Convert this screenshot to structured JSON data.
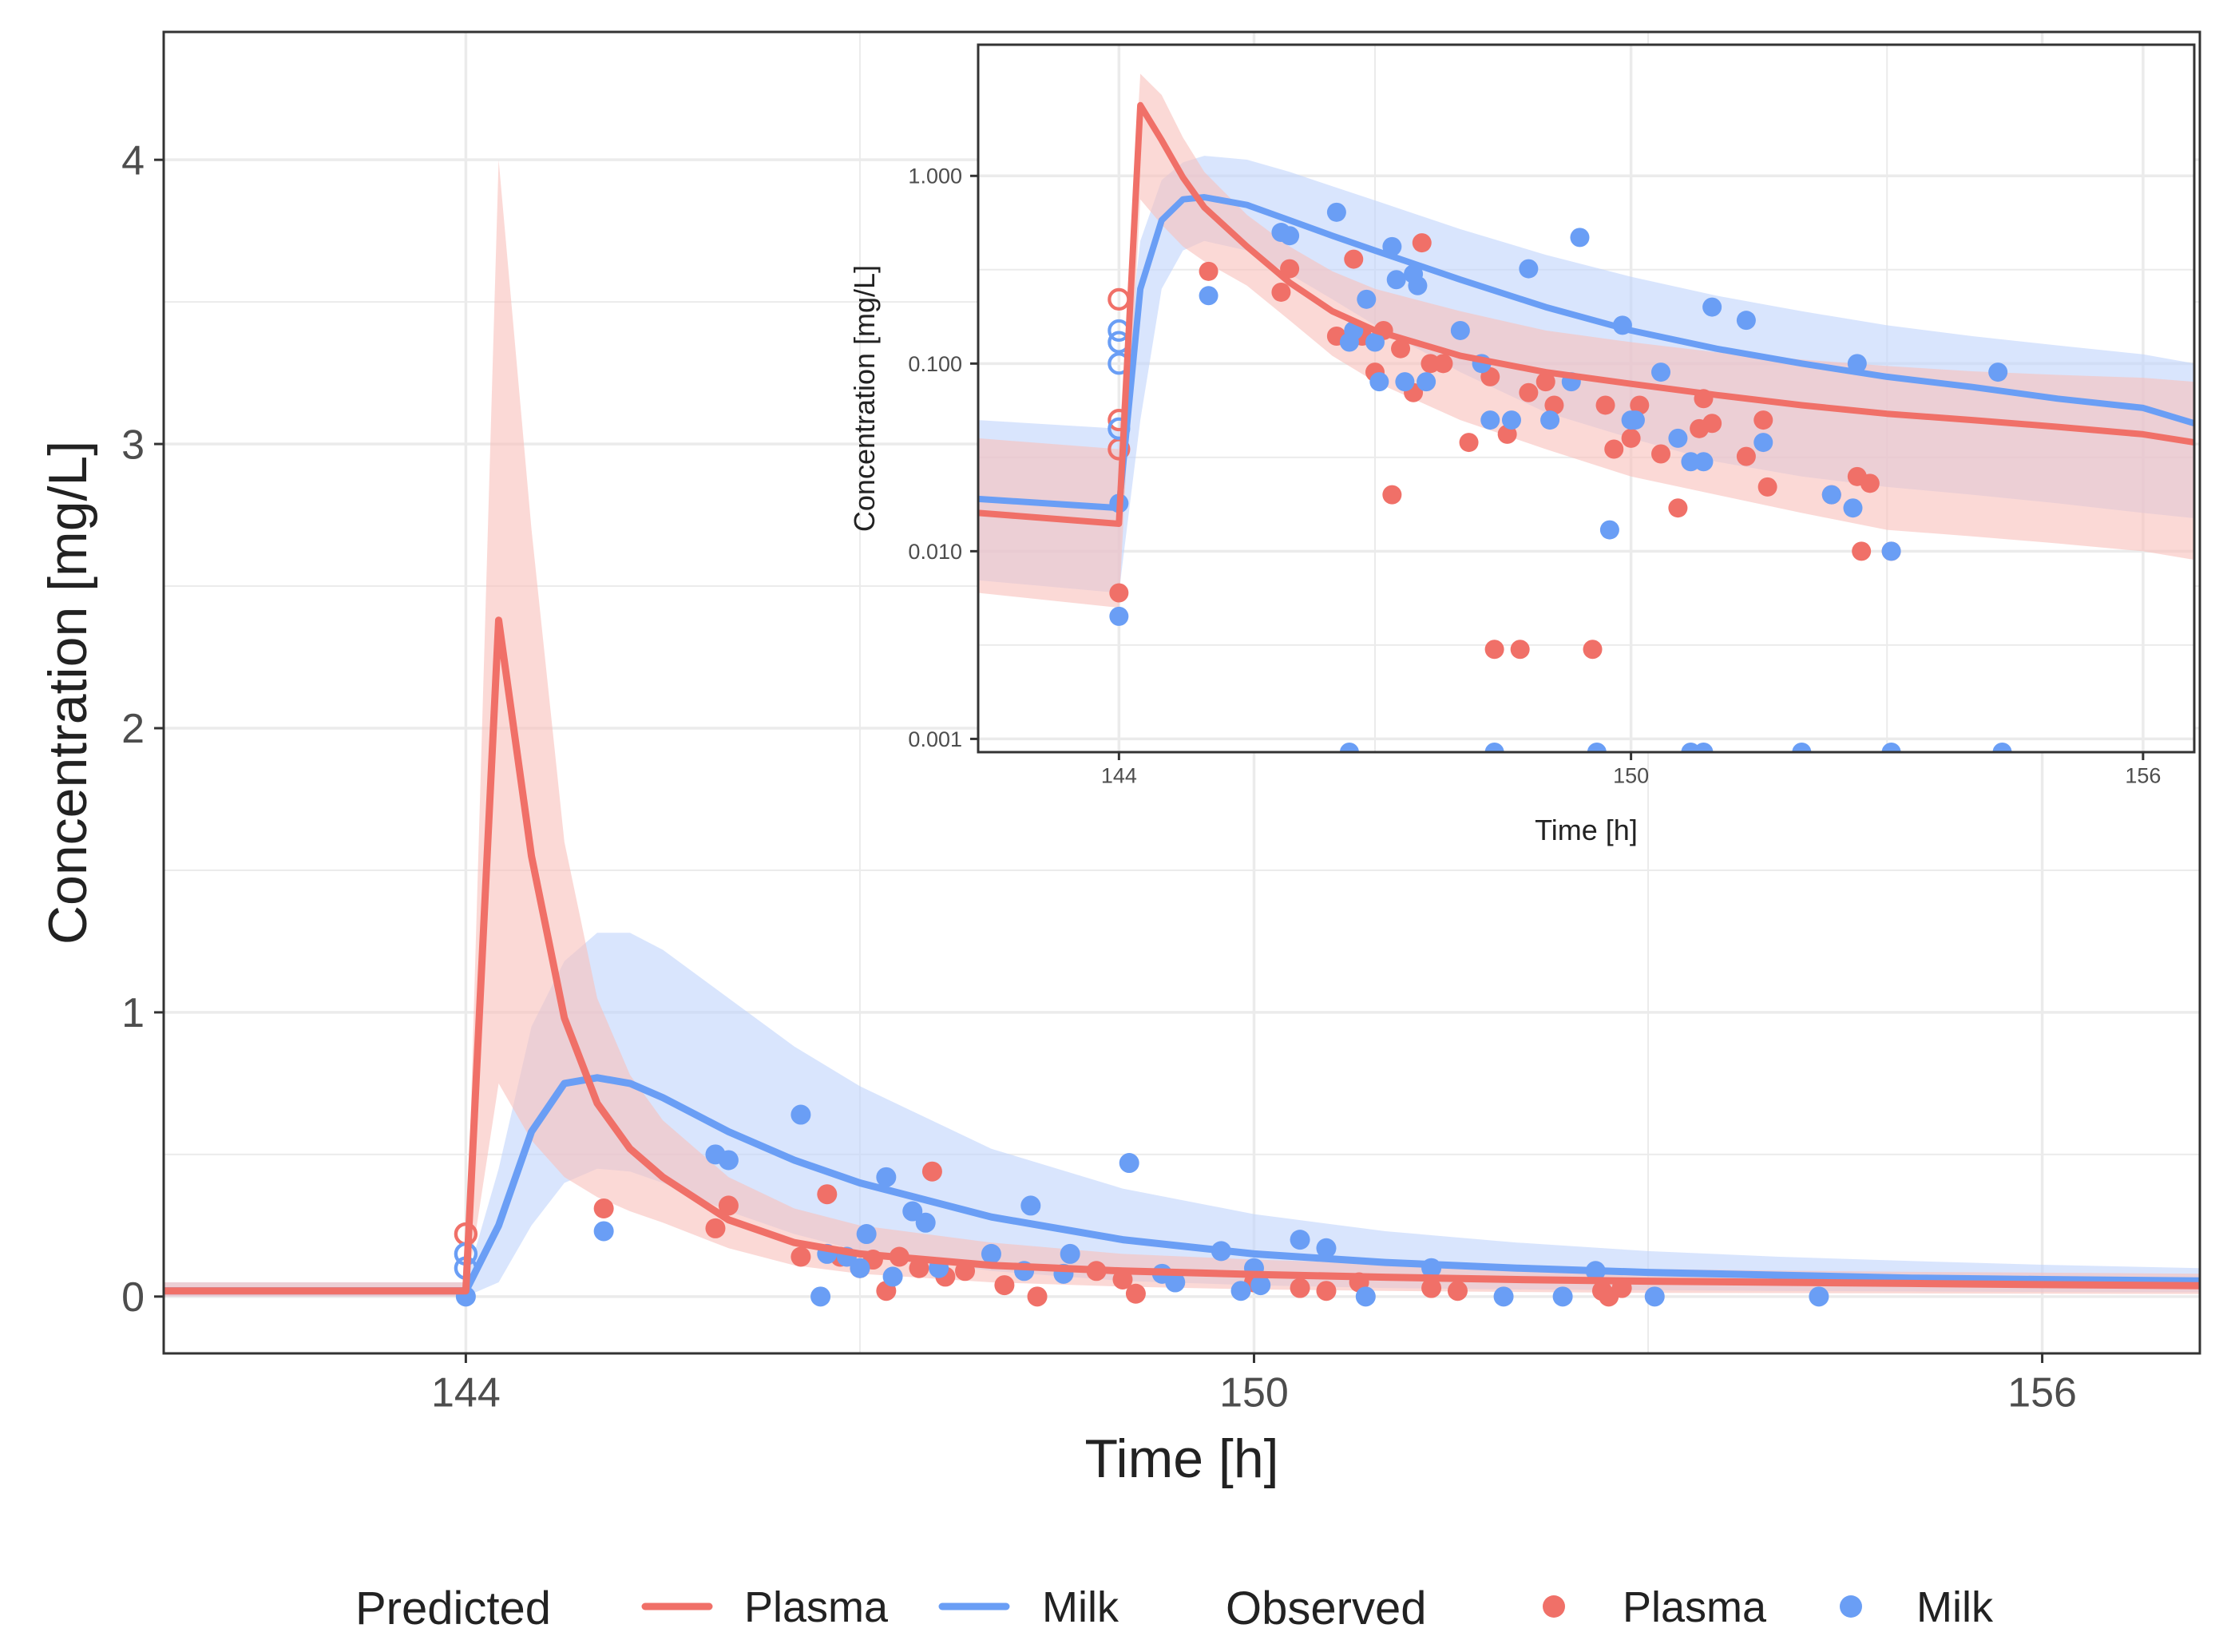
{
  "chart_data": [
    {
      "id": "main",
      "type": "line",
      "title": "",
      "xlabel": "Time [h]",
      "ylabel": "Concentration [mg/L]",
      "xlim": [
        141.7,
        157.2
      ],
      "ylim": [
        -0.2,
        4.45
      ],
      "y_scale": "linear",
      "xticks": [
        144,
        150,
        156
      ],
      "xtick_labels": [
        "144",
        "150",
        "156"
      ],
      "yticks": [
        0,
        1,
        2,
        3,
        4
      ],
      "ytick_labels": [
        "0",
        "1",
        "2",
        "3",
        "4"
      ],
      "grid": true,
      "series": [
        {
          "name": "Plasma",
          "kind": "predicted",
          "color": "#f07068",
          "x": [
            141.7,
            144.0,
            144.25,
            144.5,
            144.75,
            145.0,
            145.25,
            145.5,
            146.0,
            146.5,
            147.0,
            148.0,
            149.0,
            150.0,
            151.0,
            152.0,
            153.0,
            154.0,
            155.0,
            156.0,
            157.2
          ],
          "values": [
            0.02,
            0.02,
            2.38,
            1.55,
            0.98,
            0.68,
            0.52,
            0.42,
            0.27,
            0.19,
            0.15,
            0.11,
            0.09,
            0.078,
            0.068,
            0.06,
            0.054,
            0.05,
            0.046,
            0.042,
            0.038
          ],
          "lower": [
            0.0,
            0.0,
            0.75,
            0.55,
            0.42,
            0.35,
            0.3,
            0.26,
            0.17,
            0.11,
            0.08,
            0.05,
            0.035,
            0.025,
            0.02,
            0.016,
            0.013,
            0.012,
            0.011,
            0.01,
            0.009
          ],
          "upper": [
            0.05,
            0.05,
            4.0,
            2.7,
            1.6,
            1.05,
            0.78,
            0.62,
            0.42,
            0.31,
            0.25,
            0.19,
            0.15,
            0.13,
            0.115,
            0.105,
            0.097,
            0.091,
            0.087,
            0.084,
            0.08
          ]
        },
        {
          "name": "Milk",
          "kind": "predicted",
          "color": "#6a9ef5",
          "x": [
            141.7,
            144.0,
            144.25,
            144.5,
            144.75,
            145.0,
            145.25,
            145.5,
            146.0,
            146.5,
            147.0,
            148.0,
            149.0,
            150.0,
            151.0,
            152.0,
            153.0,
            154.0,
            155.0,
            156.0,
            157.2
          ],
          "values": [
            0.02,
            0.02,
            0.25,
            0.58,
            0.75,
            0.77,
            0.75,
            0.7,
            0.58,
            0.48,
            0.4,
            0.28,
            0.2,
            0.15,
            0.12,
            0.1,
            0.085,
            0.075,
            0.065,
            0.06,
            0.055
          ],
          "lower": [
            0.0,
            0.0,
            0.05,
            0.25,
            0.4,
            0.45,
            0.44,
            0.4,
            0.3,
            0.22,
            0.16,
            0.09,
            0.055,
            0.04,
            0.03,
            0.025,
            0.022,
            0.02,
            0.018,
            0.016,
            0.015
          ],
          "upper": [
            0.05,
            0.05,
            0.45,
            0.95,
            1.18,
            1.28,
            1.28,
            1.22,
            1.05,
            0.88,
            0.74,
            0.52,
            0.38,
            0.29,
            0.23,
            0.19,
            0.16,
            0.14,
            0.125,
            0.112,
            0.1
          ]
        },
        {
          "name": "Plasma",
          "kind": "observed",
          "color": "#f07068",
          "x": [
            144.0,
            145.05,
            145.9,
            146.0,
            146.55,
            146.75,
            146.85,
            147.0,
            147.1,
            147.2,
            147.3,
            147.45,
            147.55,
            147.65,
            147.8,
            148.1,
            148.35,
            148.8,
            149.0,
            149.1,
            150.0,
            150.35,
            150.55,
            150.8,
            151.35,
            151.55,
            152.65,
            152.7,
            152.8
          ],
          "values": [
            0.22,
            0.31,
            0.24,
            0.32,
            0.14,
            0.36,
            0.14,
            0.1,
            0.13,
            0.02,
            0.14,
            0.1,
            0.44,
            0.07,
            0.09,
            0.04,
            0.0,
            0.09,
            0.06,
            0.01,
            0.05,
            0.03,
            0.02,
            0.05,
            0.03,
            0.02,
            0.02,
            0.0,
            0.03
          ],
          "hollow": [
            true,
            false,
            false,
            false,
            false,
            false,
            false,
            false,
            false,
            false,
            false,
            false,
            false,
            false,
            false,
            false,
            false,
            false,
            false,
            false,
            false,
            false,
            false,
            false,
            false,
            false,
            false,
            false,
            false
          ]
        },
        {
          "name": "Milk",
          "kind": "observed",
          "color": "#6a9ef5",
          "x": [
            144.0,
            144.0,
            144.0,
            145.05,
            145.9,
            146.0,
            146.55,
            146.7,
            146.75,
            146.9,
            147.0,
            147.05,
            147.2,
            147.25,
            147.4,
            147.5,
            147.6,
            148.0,
            148.25,
            148.3,
            148.55,
            148.6,
            149.05,
            149.3,
            149.4,
            149.75,
            149.9,
            150.0,
            150.05,
            150.35,
            150.55,
            150.85,
            151.35,
            151.9,
            152.35,
            152.6,
            153.05,
            154.3
          ],
          "values": [
            0.15,
            0.1,
            0.0,
            0.23,
            0.5,
            0.48,
            0.64,
            0.0,
            0.15,
            0.14,
            0.1,
            0.22,
            0.42,
            0.07,
            0.3,
            0.26,
            0.1,
            0.15,
            0.09,
            0.32,
            0.08,
            0.15,
            0.47,
            0.08,
            0.05,
            0.16,
            0.02,
            0.1,
            0.04,
            0.2,
            0.17,
            0.0,
            0.1,
            0.0,
            0.0,
            0.09,
            0.0,
            0.0
          ],
          "hollow": [
            true,
            true,
            false,
            false,
            false,
            false,
            false,
            false,
            false,
            false,
            false,
            false,
            false,
            false,
            false,
            false,
            false,
            false,
            false,
            false,
            false,
            false,
            false,
            false,
            false,
            false,
            false,
            false,
            false,
            false,
            false,
            false,
            false,
            false,
            false,
            false,
            false,
            false
          ]
        }
      ]
    },
    {
      "id": "inset",
      "type": "line",
      "title": "",
      "xlabel": "Time [h]",
      "ylabel": "Concentration [mg/L]",
      "xlim": [
        142.35,
        156.6
      ],
      "ylim": [
        0.00085,
        5.0
      ],
      "y_scale": "log",
      "xticks": [
        144,
        150,
        156
      ],
      "xtick_labels": [
        "144",
        "150",
        "156"
      ],
      "yticks": [
        0.001,
        0.01,
        0.1,
        1.0
      ],
      "ytick_labels": [
        "0.001",
        "0.010",
        "0.100",
        "1.000"
      ],
      "grid": true,
      "series": [
        {
          "name": "Plasma",
          "kind": "predicted",
          "color": "#f07068",
          "x": [
            142.35,
            144.0,
            144.25,
            144.5,
            144.75,
            145.0,
            145.5,
            146.0,
            146.5,
            147.0,
            148.0,
            149.0,
            150.0,
            151.0,
            152.0,
            153.0,
            154.0,
            155.0,
            156.0,
            156.6
          ],
          "values": [
            0.016,
            0.014,
            2.38,
            1.55,
            0.98,
            0.68,
            0.42,
            0.27,
            0.19,
            0.15,
            0.11,
            0.09,
            0.078,
            0.068,
            0.06,
            0.054,
            0.05,
            0.046,
            0.042,
            0.038
          ],
          "lower": [
            0.006,
            0.005,
            0.75,
            0.55,
            0.42,
            0.35,
            0.26,
            0.17,
            0.11,
            0.08,
            0.05,
            0.035,
            0.025,
            0.02,
            0.016,
            0.013,
            0.012,
            0.011,
            0.01,
            0.009
          ],
          "upper": [
            0.04,
            0.035,
            3.5,
            2.7,
            1.6,
            1.05,
            0.62,
            0.42,
            0.31,
            0.25,
            0.19,
            0.15,
            0.13,
            0.115,
            0.105,
            0.097,
            0.091,
            0.087,
            0.084,
            0.08
          ]
        },
        {
          "name": "Milk",
          "kind": "predicted",
          "color": "#6a9ef5",
          "x": [
            142.35,
            144.0,
            144.25,
            144.5,
            144.75,
            145.0,
            145.5,
            146.0,
            146.5,
            147.0,
            148.0,
            149.0,
            150.0,
            151.0,
            152.0,
            153.0,
            154.0,
            155.0,
            156.0,
            156.6
          ],
          "values": [
            0.019,
            0.017,
            0.25,
            0.58,
            0.75,
            0.77,
            0.7,
            0.58,
            0.48,
            0.4,
            0.28,
            0.2,
            0.15,
            0.12,
            0.1,
            0.085,
            0.075,
            0.065,
            0.058,
            0.048
          ],
          "lower": [
            0.007,
            0.006,
            0.05,
            0.25,
            0.4,
            0.45,
            0.4,
            0.3,
            0.22,
            0.16,
            0.09,
            0.055,
            0.04,
            0.03,
            0.025,
            0.022,
            0.02,
            0.018,
            0.016,
            0.015
          ],
          "upper": [
            0.05,
            0.045,
            0.45,
            0.95,
            1.18,
            1.28,
            1.22,
            1.05,
            0.88,
            0.74,
            0.52,
            0.38,
            0.29,
            0.23,
            0.19,
            0.16,
            0.14,
            0.125,
            0.112,
            0.1
          ]
        },
        {
          "name": "Plasma",
          "kind": "observed",
          "color": "#f07068",
          "x": [
            144.0,
            144.0,
            144.0,
            144.0,
            145.05,
            145.9,
            146.0,
            146.55,
            146.75,
            146.85,
            147.0,
            147.1,
            147.2,
            147.3,
            147.45,
            147.55,
            147.65,
            147.8,
            148.1,
            148.35,
            148.4,
            148.55,
            148.7,
            148.8,
            149.0,
            149.1,
            149.55,
            149.7,
            149.8,
            150.0,
            150.1,
            150.35,
            150.55,
            150.8,
            150.85,
            150.95,
            151.35,
            151.55,
            151.6,
            152.35,
            152.65,
            152.7,
            152.8,
            153.05
          ],
          "values": [
            0.22,
            0.05,
            0.035,
            0.006,
            0.31,
            0.24,
            0.32,
            0.14,
            0.36,
            0.14,
            0.09,
            0.15,
            0.02,
            0.12,
            0.07,
            0.44,
            0.1,
            0.1,
            0.038,
            0.085,
            0.003,
            0.042,
            0.003,
            0.07,
            0.08,
            0.06,
            0.003,
            0.06,
            0.035,
            0.04,
            0.06,
            0.033,
            0.017,
            0.045,
            0.065,
            0.048,
            0.032,
            0.05,
            0.022,
            0.02,
            0.025,
            0.01,
            0.023,
            0.01
          ],
          "hollow": [
            true,
            true,
            true,
            false,
            false,
            false,
            false,
            false,
            false,
            false,
            false,
            false,
            false,
            false,
            false,
            false,
            false,
            false,
            false,
            false,
            false,
            false,
            false,
            false,
            false,
            false,
            false,
            false,
            false,
            false,
            false,
            false,
            false,
            false,
            false,
            false,
            false,
            false,
            false,
            false,
            false,
            false,
            false,
            false
          ]
        },
        {
          "name": "Milk",
          "kind": "observed",
          "color": "#6a9ef5",
          "x": [
            144.0,
            144.0,
            144.0,
            144.0,
            144.0,
            144.0,
            145.05,
            145.9,
            146.0,
            146.55,
            146.7,
            146.75,
            146.9,
            147.0,
            147.05,
            147.2,
            147.25,
            147.35,
            147.45,
            147.5,
            147.6,
            148.0,
            148.25,
            148.35,
            148.6,
            148.8,
            149.05,
            149.3,
            149.4,
            149.75,
            149.9,
            150.0,
            150.05,
            150.35,
            150.55,
            150.7,
            150.85,
            150.95,
            151.35,
            151.55,
            152.35,
            152.6,
            152.65,
            153.05,
            154.3,
            146.7,
            148.4,
            149.6,
            150.7,
            150.85,
            152.0,
            153.05,
            154.35
          ],
          "values": [
            0.15,
            0.13,
            0.1,
            0.045,
            0.018,
            0.0045,
            0.23,
            0.5,
            0.48,
            0.64,
            0.13,
            0.15,
            0.22,
            0.13,
            0.08,
            0.42,
            0.28,
            0.08,
            0.3,
            0.26,
            0.08,
            0.15,
            0.1,
            0.05,
            0.05,
            0.32,
            0.05,
            0.08,
            0.47,
            0.013,
            0.16,
            0.05,
            0.05,
            0.09,
            0.04,
            0.03,
            0.03,
            0.2,
            0.17,
            0.038,
            0.02,
            0.017,
            0.1,
            0.01,
            0.09,
            0.0008,
            0.0008,
            0.0008,
            0.0008,
            0.0008,
            0.0008,
            0.0008,
            0.0008
          ],
          "hollow": [
            true,
            true,
            true,
            true,
            false,
            false,
            false,
            false,
            false,
            false,
            false,
            false,
            false,
            false,
            false,
            false,
            false,
            false,
            false,
            false,
            false,
            false,
            false,
            false,
            false,
            false,
            false,
            false,
            false,
            false,
            false,
            false,
            false,
            false,
            false,
            false,
            false,
            false,
            false,
            false,
            false,
            false,
            false,
            false,
            false,
            false,
            false,
            false,
            false,
            false,
            false,
            false,
            false
          ]
        }
      ]
    }
  ],
  "legend": {
    "placement": "bottom",
    "predicted_title": "Predicted",
    "observed_title": "Observed",
    "items": [
      {
        "group": "Predicted",
        "label": "Plasma",
        "color": "#f07068",
        "glyph": "line"
      },
      {
        "group": "Predicted",
        "label": "Milk",
        "color": "#6a9ef5",
        "glyph": "line"
      },
      {
        "group": "Observed",
        "label": "Plasma",
        "color": "#f07068",
        "glyph": "dot"
      },
      {
        "group": "Observed",
        "label": "Milk",
        "color": "#6a9ef5",
        "glyph": "dot"
      }
    ]
  },
  "colors": {
    "plasma": "#f07068",
    "milk": "#6a9ef5",
    "plasma_band": "#f8c0bb",
    "milk_band": "#bfd4fb",
    "grid": "#ebebeb",
    "axis": "#333333",
    "text": "#222222"
  }
}
